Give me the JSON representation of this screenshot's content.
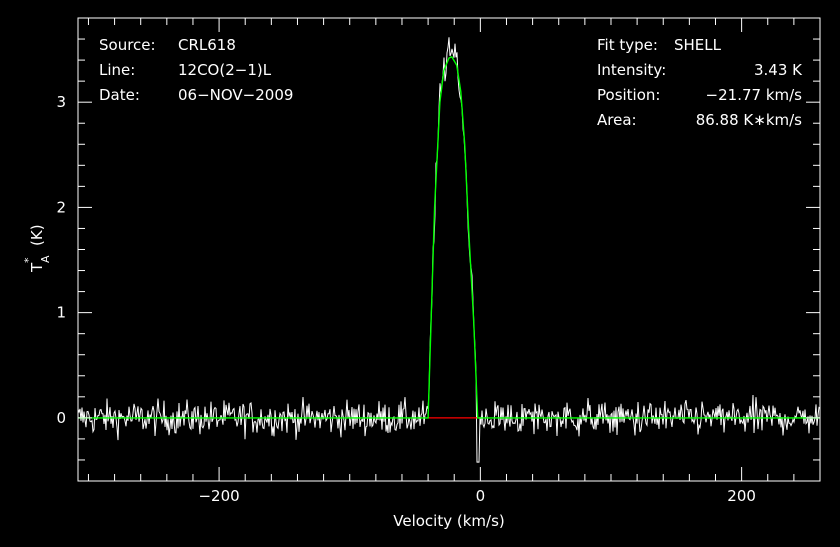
{
  "chart_data": {
    "type": "line",
    "xlabel": "Velocity (km/s)",
    "ylabel": "T",
    "ylabel_sup": "*",
    "ylabel_sub": "A",
    "ylabel_unit": "(K)",
    "xlim": [
      -308,
      260
    ],
    "ylim": [
      -0.6,
      3.8
    ],
    "xticks": [
      -200,
      0,
      200
    ],
    "xtick_labels": [
      "−200",
      "0",
      "200"
    ],
    "yticks": [
      0,
      1,
      2,
      3
    ],
    "ytick_labels": [
      "0",
      "1",
      "2",
      "3"
    ],
    "info_left": [
      {
        "key": "Source:",
        "value": "CRL618"
      },
      {
        "key": "Line:",
        "value": "12CO(2−1)L"
      },
      {
        "key": "Date:",
        "value": "06−NOV−2009"
      }
    ],
    "info_right": [
      {
        "key": "Fit type:",
        "value": "SHELL"
      },
      {
        "key": "Intensity:",
        "value": "3.43 K"
      },
      {
        "key": "Position:",
        "value": "−21.77 km/s"
      },
      {
        "key": "Area:",
        "value": "86.88 K∗km/s"
      }
    ],
    "series": [
      {
        "role": "spectrum",
        "color": "#ffffff",
        "noise_rms_K": 0.08,
        "peak_K": 3.55
      },
      {
        "role": "fit",
        "color": "#00ff00",
        "x": [
          -308,
          -50,
          -40,
          -38,
          -35,
          -31,
          -28,
          -24,
          -21.77,
          -18,
          -15,
          -12,
          -9,
          -5,
          -2,
          260
        ],
        "y": [
          0.0,
          0.0,
          0.0,
          0.8,
          2.0,
          3.0,
          3.3,
          3.42,
          3.43,
          3.35,
          3.1,
          2.6,
          1.8,
          0.9,
          0.0,
          0.0
        ]
      },
      {
        "role": "baseline-window",
        "color": "#ff0000",
        "x": [
          -40,
          -2
        ],
        "y": [
          0,
          0
        ]
      }
    ],
    "grid": false,
    "legend": "none"
  }
}
